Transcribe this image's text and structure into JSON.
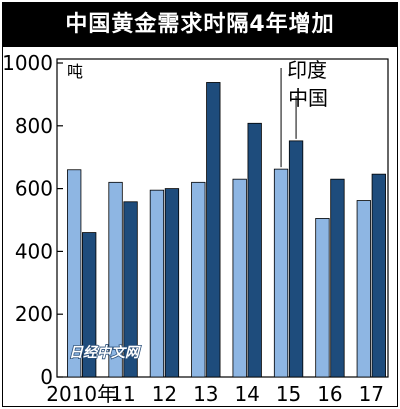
{
  "chart_data": {
    "type": "bar",
    "title": "中国黄金需求时隔4年增加",
    "ylabel": "吨",
    "xlabel": "",
    "ylim": [
      0,
      1000
    ],
    "yticks": [
      0,
      200,
      400,
      600,
      800,
      1000
    ],
    "categories": [
      "2010年",
      "11",
      "12",
      "13",
      "14",
      "15",
      "16",
      "17"
    ],
    "series": [
      {
        "name": "印度",
        "values": [
          660,
          620,
          595,
          620,
          630,
          662,
          505,
          562
        ],
        "color": "#8eb6e3"
      },
      {
        "name": "中国",
        "values": [
          460,
          558,
          600,
          938,
          808,
          752,
          630,
          646
        ],
        "color": "#1e4c7c"
      }
    ],
    "legend_placement": "top-right",
    "grid": false
  },
  "watermark": "日经中文网"
}
